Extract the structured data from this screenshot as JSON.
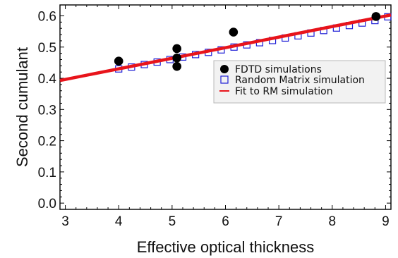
{
  "chart_data": {
    "type": "scatter",
    "title": "",
    "xlabel": "Effective optical thickness",
    "ylabel": "Second cumulant",
    "xlim": [
      2.9,
      9.1
    ],
    "ylim": [
      -0.02,
      0.635
    ],
    "xticks": [
      3,
      4,
      5,
      6,
      7,
      8,
      9
    ],
    "yticks": [
      0.0,
      0.1,
      0.2,
      0.3,
      0.4,
      0.5,
      0.6
    ],
    "ytick_labels": [
      "0.0",
      "0.1",
      "0.2",
      "0.3",
      "0.4",
      "0.5",
      "0.6"
    ],
    "grid": false,
    "legend_position": "center-right",
    "series": [
      {
        "name": "FDTD simulations",
        "marker": "filled-circle",
        "color": "#000000",
        "x": [
          4.0,
          5.09,
          5.09,
          5.09,
          6.15,
          8.82
        ],
        "y": [
          0.455,
          0.495,
          0.465,
          0.438,
          0.548,
          0.598
        ]
      },
      {
        "name": "Random Matrix simulation",
        "marker": "open-square",
        "color": "#1f1fd6",
        "x": [
          4.0,
          4.24,
          4.48,
          4.72,
          4.96,
          5.2,
          5.44,
          5.68,
          5.92,
          6.16,
          6.4,
          6.64,
          6.88,
          7.12,
          7.36,
          7.6,
          7.84,
          8.08,
          8.32,
          8.56,
          8.8,
          9.04
        ],
        "y": [
          0.43,
          0.436,
          0.444,
          0.452,
          0.46,
          0.468,
          0.476,
          0.483,
          0.491,
          0.5,
          0.507,
          0.514,
          0.521,
          0.529,
          0.536,
          0.545,
          0.553,
          0.561,
          0.569,
          0.577,
          0.585,
          0.597
        ]
      },
      {
        "name": "Fit to RM simulation",
        "type": "line",
        "color": "#e8141b",
        "x": [
          2.9,
          9.1
        ],
        "y": [
          0.393,
          0.603
        ]
      }
    ]
  }
}
